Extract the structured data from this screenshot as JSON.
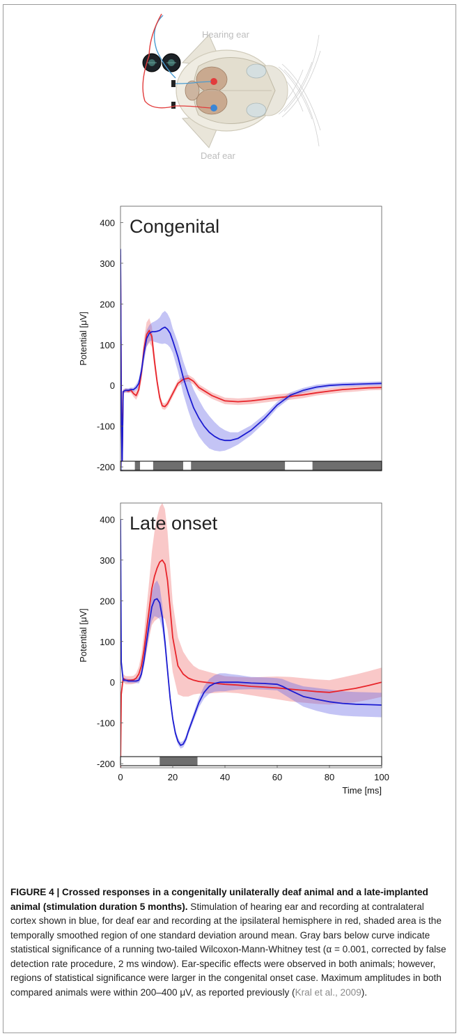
{
  "diagram": {
    "hearing_ear_label": "Hearing ear",
    "deaf_ear_label": "Deaf ear"
  },
  "chart_data": [
    {
      "type": "line",
      "title": "Congenital",
      "ylabel": "Potential [μV]",
      "xlabel": "",
      "xlim": [
        0,
        100
      ],
      "ylim": [
        -210,
        440
      ],
      "yticks": [
        400,
        300,
        200,
        100,
        0,
        -100,
        -200
      ],
      "grid": false,
      "series": [
        {
          "color": "#e8242a",
          "x": [
            0,
            0.3,
            0.6,
            1,
            2,
            3,
            4,
            5,
            6,
            7,
            8,
            9,
            10,
            11,
            12,
            13,
            14,
            15,
            16,
            17,
            18,
            20,
            22,
            24,
            26,
            28,
            30,
            35,
            40,
            45,
            50,
            55,
            60,
            65,
            70,
            75,
            80,
            85,
            90,
            95,
            100
          ],
          "y": [
            320,
            0,
            -200,
            -15,
            -12,
            -14,
            -12,
            -20,
            -25,
            -10,
            30,
            90,
            125,
            135,
            120,
            60,
            10,
            -30,
            -50,
            -52,
            -45,
            -20,
            5,
            15,
            18,
            10,
            -5,
            -25,
            -38,
            -40,
            -38,
            -34,
            -30,
            -27,
            -23,
            -18,
            -14,
            -10,
            -8,
            -6,
            -5
          ],
          "band": [
            5,
            5,
            5,
            5,
            5,
            5,
            6,
            8,
            10,
            12,
            18,
            25,
            30,
            30,
            25,
            18,
            12,
            10,
            8,
            8,
            8,
            8,
            8,
            8,
            8,
            8,
            8,
            8,
            8,
            8,
            8,
            8,
            8,
            8,
            8,
            7,
            7,
            7,
            7,
            6,
            6
          ]
        },
        {
          "color": "#1b1bd1",
          "x": [
            0,
            0.3,
            0.6,
            1,
            2,
            3,
            4,
            5,
            6,
            7,
            8,
            9,
            10,
            11,
            12,
            13,
            14,
            15,
            16,
            17,
            18,
            19,
            20,
            22,
            24,
            26,
            28,
            30,
            32,
            34,
            36,
            38,
            40,
            42,
            45,
            50,
            55,
            60,
            65,
            70,
            75,
            80,
            85,
            90,
            95,
            100
          ],
          "y": [
            335,
            -50,
            -210,
            -15,
            -12,
            -12,
            -10,
            -10,
            -5,
            5,
            35,
            80,
            115,
            128,
            132,
            132,
            133,
            135,
            140,
            143,
            138,
            128,
            110,
            70,
            20,
            -20,
            -55,
            -80,
            -100,
            -115,
            -125,
            -132,
            -135,
            -135,
            -130,
            -110,
            -82,
            -48,
            -24,
            -12,
            -4,
            0,
            2,
            3,
            4,
            5
          ],
          "band": [
            5,
            5,
            5,
            5,
            5,
            5,
            5,
            5,
            8,
            10,
            15,
            20,
            20,
            20,
            22,
            25,
            28,
            32,
            38,
            40,
            38,
            35,
            30,
            35,
            40,
            43,
            45,
            45,
            42,
            40,
            35,
            30,
            25,
            20,
            15,
            12,
            10,
            8,
            7,
            6,
            6,
            5,
            5,
            5,
            5,
            5
          ]
        }
      ],
      "significance_bar": [
        {
          "from": 0.5,
          "to": 5.5,
          "sig": false
        },
        {
          "from": 5.5,
          "to": 7.5,
          "sig": true
        },
        {
          "from": 7.5,
          "to": 12.5,
          "sig": false
        },
        {
          "from": 12.5,
          "to": 24,
          "sig": true
        },
        {
          "from": 24,
          "to": 27,
          "sig": false
        },
        {
          "from": 27,
          "to": 63,
          "sig": true
        },
        {
          "from": 63,
          "to": 73.5,
          "sig": false
        },
        {
          "from": 73.5,
          "to": 100,
          "sig": true
        }
      ]
    },
    {
      "type": "line",
      "title": "Late onset",
      "ylabel": "Potential [μV]",
      "xlabel": "Time [ms]",
      "xlim": [
        0,
        100
      ],
      "ylim": [
        -210,
        440
      ],
      "xticks": [
        0,
        20,
        40,
        60,
        80,
        100
      ],
      "yticks": [
        400,
        300,
        200,
        100,
        0,
        -100,
        -200
      ],
      "grid": false,
      "series": [
        {
          "color": "#e8242a",
          "x": [
            0,
            0.3,
            1,
            2,
            3,
            4,
            5,
            6,
            7,
            8,
            9,
            10,
            11,
            12,
            13,
            14,
            15,
            16,
            17,
            18,
            19,
            20,
            22,
            24,
            26,
            28,
            30,
            35,
            40,
            45,
            50,
            55,
            60,
            65,
            70,
            75,
            80,
            85,
            90,
            95,
            100
          ],
          "y": [
            -210,
            -30,
            10,
            5,
            5,
            5,
            6,
            10,
            20,
            40,
            80,
            130,
            180,
            230,
            260,
            280,
            295,
            300,
            290,
            250,
            180,
            110,
            40,
            20,
            10,
            5,
            2,
            -2,
            -5,
            -7,
            -10,
            -12,
            -14,
            -17,
            -20,
            -23,
            -25,
            -20,
            -15,
            -8,
            0
          ],
          "band": [
            10,
            10,
            10,
            10,
            10,
            10,
            10,
            12,
            18,
            28,
            40,
            55,
            70,
            90,
            110,
            125,
            135,
            140,
            135,
            120,
            100,
            85,
            70,
            55,
            45,
            35,
            30,
            25,
            20,
            20,
            22,
            25,
            28,
            30,
            30,
            30,
            30,
            32,
            34,
            35,
            36
          ]
        },
        {
          "color": "#1b1bd1",
          "x": [
            0,
            0.3,
            1,
            2,
            3,
            4,
            5,
            6,
            7,
            8,
            9,
            10,
            11,
            12,
            13,
            14,
            15,
            16,
            17,
            18,
            19,
            20,
            21,
            22,
            23,
            24,
            25,
            26,
            28,
            30,
            32,
            34,
            36,
            38,
            40,
            42,
            45,
            50,
            55,
            60,
            62,
            65,
            70,
            75,
            80,
            85,
            90,
            95,
            100
          ],
          "y": [
            400,
            50,
            5,
            5,
            3,
            3,
            3,
            3,
            5,
            20,
            55,
            100,
            145,
            185,
            202,
            205,
            195,
            160,
            100,
            30,
            -40,
            -90,
            -125,
            -145,
            -155,
            -152,
            -140,
            -120,
            -85,
            -50,
            -25,
            -10,
            -3,
            0,
            0,
            0,
            0,
            -2,
            -3,
            -5,
            -10,
            -20,
            -35,
            -42,
            -48,
            -52,
            -54,
            -55,
            -56
          ],
          "band": [
            5,
            5,
            5,
            5,
            5,
            5,
            5,
            5,
            8,
            10,
            15,
            20,
            25,
            35,
            40,
            45,
            40,
            30,
            20,
            15,
            12,
            10,
            8,
            8,
            8,
            8,
            8,
            8,
            10,
            12,
            15,
            18,
            20,
            22,
            22,
            20,
            18,
            15,
            15,
            15,
            18,
            20,
            25,
            28,
            30,
            30,
            30,
            30,
            30
          ]
        }
      ],
      "significance_bar": [
        {
          "from": 0,
          "to": 15,
          "sig": false
        },
        {
          "from": 15,
          "to": 29.5,
          "sig": true
        },
        {
          "from": 29.5,
          "to": 100,
          "sig": false
        }
      ]
    }
  ],
  "caption": {
    "bold": "FIGURE 4 | Crossed responses in a congenitally unilaterally deaf animal and a late-implanted animal (stimulation duration 5 months).",
    "body": " Stimulation of hearing ear and recording at contralateral cortex shown in blue, for deaf ear and recording at the ipsilateral hemisphere in red, shaded area is the temporally smoothed region of one standard deviation around mean. Gray bars below curve indicate statistical significance of a running two-tailed Wilcoxon-Mann-Whitney test (α = 0.001, corrected by false detection rate procedure, 2 ms window). Ear-specific effects were observed in both animals; however, regions of statistical significance were larger in the congenital onset case. Maximum amplitudes in both compared animals were within 200–400 μV, as reported previously (",
    "ref": "Kral et al., 2009",
    "end": ")."
  }
}
